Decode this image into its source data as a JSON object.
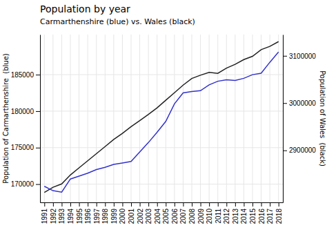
{
  "chart_data": {
    "type": "line",
    "title": "Population by year",
    "subtitle": "Carmarthenshire (blue) vs. Wales (black)",
    "ylabel": "Population of Carmarthenshire  (blue)",
    "y2label": "Population of Wales  (black)",
    "x": [
      1991,
      1992,
      1993,
      1994,
      1995,
      1996,
      1997,
      1998,
      1999,
      2000,
      2001,
      2002,
      2003,
      2004,
      2005,
      2006,
      2007,
      2008,
      2009,
      2010,
      2011,
      2012,
      2013,
      2014,
      2015,
      2016,
      2017,
      2018
    ],
    "xlim": [
      1990.5,
      2018.5
    ],
    "xticks": [
      1991,
      1992,
      1993,
      1994,
      1995,
      1996,
      1997,
      1998,
      1999,
      2000,
      2001,
      2002,
      2003,
      2004,
      2005,
      2006,
      2007,
      2008,
      2009,
      2010,
      2011,
      2012,
      2013,
      2014,
      2015,
      2016,
      2017,
      2018
    ],
    "ylim": [
      167500,
      190500
    ],
    "yticks": [
      170000,
      175000,
      180000,
      185000
    ],
    "y2lim": [
      2790000,
      3145000
    ],
    "y2ticks": [
      2900000,
      3000000,
      3100000
    ],
    "grid": true,
    "series": [
      {
        "color": "#222222",
        "axis": "y2",
        "values": [
          2811000,
          2822000,
          2829000,
          2848000,
          2863000,
          2878000,
          2893000,
          2908000,
          2923000,
          2936000,
          2950000,
          2963000,
          2976000,
          2990000,
          3006000,
          3022000,
          3038000,
          3052000,
          3059000,
          3065000,
          3063000,
          3074000,
          3082000,
          3092000,
          3099000,
          3113000,
          3120000,
          3130000
        ]
      },
      {
        "color": "#3333cc",
        "values": [
          169700,
          169100,
          168900,
          170700,
          171100,
          171500,
          172000,
          172300,
          172700,
          172900,
          173100,
          174400,
          175700,
          177100,
          178600,
          181000,
          182500,
          182700,
          182800,
          183600,
          184100,
          184300,
          184200,
          184500,
          185000,
          185200,
          186700,
          188100
        ]
      }
    ]
  }
}
